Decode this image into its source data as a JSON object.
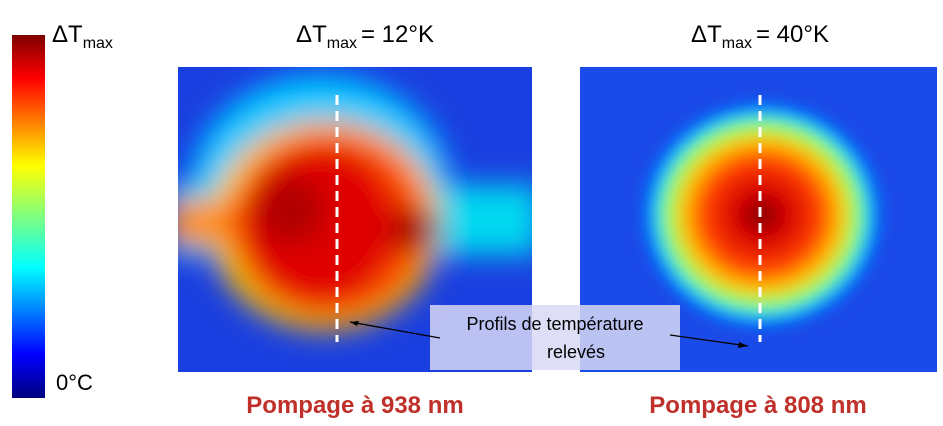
{
  "colorbar": {
    "top_symbol": "ΔT",
    "top_subscript": "max",
    "bottom_label": "0°C"
  },
  "panels": [
    {
      "title_symbol": "ΔT",
      "title_subscript": "max",
      "title_value": "= 12°K",
      "caption": "Pompage à 938 nm"
    },
    {
      "title_symbol": "ΔT",
      "title_subscript": "max",
      "title_value": "= 40°K",
      "caption": "Pompage à 808 nm"
    }
  ],
  "annotation": {
    "lines": [
      "Profils de température",
      "relevés"
    ]
  }
}
